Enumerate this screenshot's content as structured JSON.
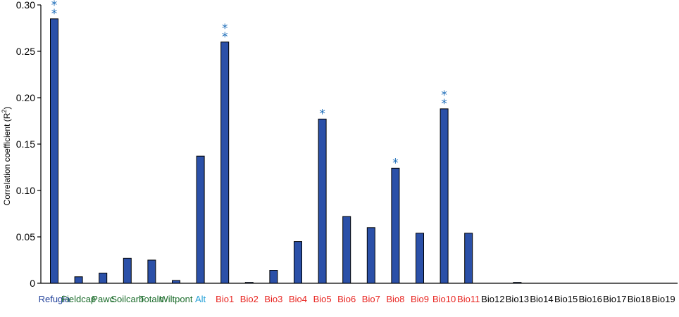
{
  "chart_data": {
    "type": "bar",
    "ylabel_main": "Correlation coefficient (R",
    "ylabel_sup": "2",
    "ylabel_end": ")",
    "ylim": [
      0,
      0.3
    ],
    "yticks": [
      "0",
      "0.05",
      "0.10",
      "0.15",
      "0.20",
      "0.25",
      "0.30"
    ],
    "ytick_values": [
      0,
      0.05,
      0.1,
      0.15,
      0.2,
      0.25,
      0.3
    ],
    "categories": [
      "Refugia",
      "Fieldcap",
      "Pawc",
      "Soilcarb",
      "Totaln",
      "Wiltpont",
      "Alt",
      "Bio1",
      "Bio2",
      "Bio3",
      "Bio4",
      "Bio5",
      "Bio6",
      "Bio7",
      "Bio8",
      "Bio9",
      "Bio10",
      "Bio11",
      "Bio12",
      "Bio13",
      "Bio14",
      "Bio15",
      "Bio16",
      "Bio17",
      "Bio18",
      "Bio19"
    ],
    "values": [
      0.285,
      0.007,
      0.011,
      0.027,
      0.025,
      0.003,
      0.137,
      0.26,
      0.001,
      0.014,
      0.045,
      0.177,
      0.072,
      0.06,
      0.124,
      0.054,
      0.188,
      0.054,
      0,
      0.001,
      0,
      0,
      0,
      0,
      0,
      0
    ],
    "significance": [
      "**",
      "",
      "",
      "",
      "",
      "",
      "",
      "**",
      "",
      "",
      "",
      "*",
      "",
      "",
      "*",
      "",
      "**",
      "",
      "",
      "",
      "",
      "",
      "",
      "",
      "",
      ""
    ],
    "label_colors": [
      "#1f3f99",
      "#1a6b2a",
      "#1a6b2a",
      "#1a6b2a",
      "#1a6b2a",
      "#1a6b2a",
      "#2aa3d8",
      "#e8231f",
      "#e8231f",
      "#e8231f",
      "#e8231f",
      "#e8231f",
      "#e8231f",
      "#e8231f",
      "#e8231f",
      "#e8231f",
      "#e8231f",
      "#e8231f",
      "#000000",
      "#000000",
      "#000000",
      "#000000",
      "#000000",
      "#000000",
      "#000000",
      "#000000"
    ],
    "bar_color": "#2b50a8",
    "star_color": "#1a6bb8",
    "grid": false
  }
}
